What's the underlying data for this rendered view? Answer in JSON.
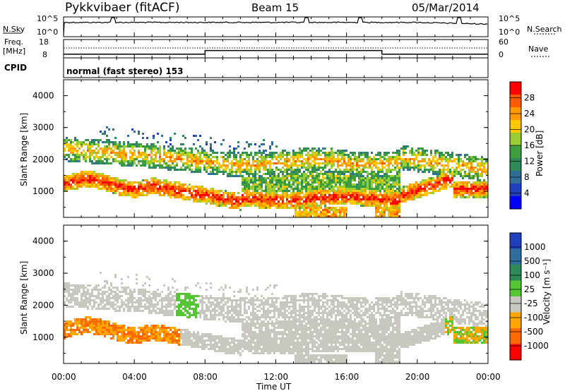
{
  "header": {
    "station": "Pykkvibaer (fitACF)",
    "beam": "Beam 15",
    "date": "05/Mar/2014"
  },
  "noise_panel": {
    "left_label": "N.Sky",
    "left_ticks": [
      "10^5",
      "10^0"
    ],
    "right_ticks": [
      "10^5",
      "10^0"
    ],
    "right_label": "N.Search"
  },
  "freq_panel": {
    "label_line1": "Freq.",
    "label_line2": "[MHz]",
    "left_ticks": [
      "18",
      "8"
    ],
    "right_ticks": [
      "60",
      "0"
    ],
    "right_label": "Nave"
  },
  "cpid_panel": {
    "label": "CPID",
    "mode": "normal (fast stereo) 153"
  },
  "power_panel": {
    "ylabel": "Slant Range [km]",
    "yticks": [
      "4000",
      "3000",
      "2000",
      "1000"
    ],
    "colorbar_label": "Power [dB]",
    "colorbar_ticks": [
      "28",
      "24",
      "20",
      "16",
      "12",
      "8",
      "4"
    ],
    "colorbar_colors": [
      "#ff0000",
      "#ff5a00",
      "#ff9a00",
      "#ffc800",
      "#9acd32",
      "#3c9e3c",
      "#2e8b57",
      "#2f6e9a",
      "#1f3fbf",
      "#0000ff"
    ]
  },
  "velocity_panel": {
    "ylabel": "Slant Range [km]",
    "yticks": [
      "4000",
      "3000",
      "2000",
      "1000"
    ],
    "colorbar_label": "Velocity [m s⁻¹]",
    "colorbar_ticks": [
      "1000",
      "500",
      "100",
      "25",
      "-25",
      "-100",
      "-500",
      "-1000"
    ],
    "colorbar_colors": [
      "#1f3fbf",
      "#2f6e9a",
      "#2e8b57",
      "#55c733",
      "#c8c8c0",
      "#ffa500",
      "#ff6a00",
      "#ff0000"
    ]
  },
  "xaxis": {
    "ticks": [
      "00:00",
      "04:00",
      "08:00",
      "12:00",
      "16:00",
      "20:00",
      "00:00"
    ],
    "label": "Time UT"
  },
  "chart_data": {
    "type": "heatmap",
    "x_range_hours": [
      0,
      24
    ],
    "y_range_km": [
      180,
      4500
    ],
    "power_scale_db": [
      0,
      30
    ],
    "velocity_scale_ms": [
      -1000,
      1000
    ],
    "freq_mhz_trace": [
      {
        "from_hour": 0,
        "to_hour": 8,
        "freq_mhz": 10
      },
      {
        "from_hour": 8,
        "to_hour": 18,
        "freq_mhz": 12
      },
      {
        "from_hour": 18,
        "to_hour": 24,
        "freq_mhz": 10
      }
    ]
  }
}
